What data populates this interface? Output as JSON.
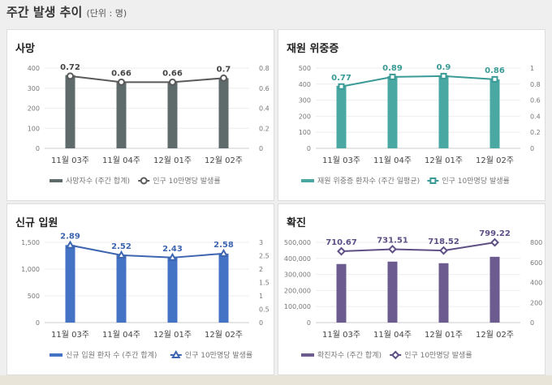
{
  "header": {
    "title": "주간 발생 추이",
    "unit": "(단위 : 명)"
  },
  "chart_data": [
    {
      "type": "bar+line",
      "title": "사망",
      "categories": [
        "11월 03주",
        "11월 04주",
        "12월 01주",
        "12월 02주"
      ],
      "series": [
        {
          "name": "사망자수 (주간 합계)",
          "type": "bar",
          "axis": "left",
          "values": [
            365,
            330,
            330,
            350
          ],
          "color": "#5f6a6a"
        },
        {
          "name": "인구 10만명당 발생률",
          "type": "line",
          "axis": "right",
          "values": [
            0.72,
            0.66,
            0.66,
            0.7
          ],
          "color": "#5a5a5a",
          "marker": "circle"
        }
      ],
      "ylim_left": [
        0,
        400
      ],
      "yticks_left": [
        "0",
        "100",
        "200",
        "300",
        "400"
      ],
      "ylim_right": [
        0,
        0.8
      ],
      "yticks_right": [
        "0",
        "0.2",
        "0.4",
        "0.6",
        "0.8"
      ],
      "grid": true,
      "legend": "bottom"
    },
    {
      "type": "bar+line",
      "title": "재원 위중증",
      "categories": [
        "11월 03주",
        "11월 04주",
        "12월 01주",
        "12월 02주"
      ],
      "series": [
        {
          "name": "재원 위중증 환자수 (주간 일평균)",
          "type": "bar",
          "axis": "left",
          "values": [
            390,
            450,
            455,
            430
          ],
          "color": "#4aa8a3"
        },
        {
          "name": "인구 10만명당 발생률",
          "type": "line",
          "axis": "right",
          "values": [
            0.77,
            0.89,
            0.9,
            0.86
          ],
          "color": "#3a9b96",
          "marker": "square"
        }
      ],
      "ylim_left": [
        0,
        500
      ],
      "yticks_left": [
        "0",
        "100",
        "200",
        "300",
        "400",
        "500"
      ],
      "ylim_right": [
        0,
        1
      ],
      "yticks_right": [
        "0",
        "0.2",
        "0.4",
        "0.6",
        "0.8",
        "1"
      ],
      "grid": true,
      "legend": "bottom"
    },
    {
      "type": "bar+line",
      "title": "신규 입원",
      "categories": [
        "11월 03주",
        "11월 04주",
        "12월 01주",
        "12월 02주"
      ],
      "series": [
        {
          "name": "신규 입원 환자 수 (주간 합계)",
          "type": "bar",
          "axis": "left",
          "values": [
            1450,
            1260,
            1215,
            1290
          ],
          "color": "#4472c4"
        },
        {
          "name": "인구 10만명당 발생률",
          "type": "line",
          "axis": "right",
          "values": [
            2.89,
            2.52,
            2.43,
            2.58
          ],
          "color": "#3d65b0",
          "marker": "triangle"
        }
      ],
      "ylim_left": [
        0,
        1500
      ],
      "yticks_left": [
        "0",
        "500",
        "1,000",
        "1,500"
      ],
      "ylim_right": [
        0,
        3
      ],
      "yticks_right": [
        "0",
        "0.5",
        "1",
        "1.5",
        "2",
        "2.5",
        "3"
      ],
      "grid": true,
      "legend": "bottom"
    },
    {
      "type": "bar+line",
      "title": "확진",
      "categories": [
        "11월 03주",
        "11월 04주",
        "12월 01주",
        "12월 02주"
      ],
      "series": [
        {
          "name": "확진자수 (주간 합계)",
          "type": "bar",
          "axis": "left",
          "values": [
            365000,
            380000,
            370000,
            410000
          ],
          "color": "#6b5b8e"
        },
        {
          "name": "인구 10만명당 발생률",
          "type": "line",
          "axis": "right",
          "values": [
            710.67,
            731.51,
            718.52,
            799.22
          ],
          "color": "#5e4f85",
          "marker": "diamond"
        }
      ],
      "ylim_left": [
        0,
        500000
      ],
      "yticks_left": [
        "0",
        "100,000",
        "200,000",
        "300,000",
        "400,000",
        "500,000"
      ],
      "ylim_right": [
        0,
        800
      ],
      "yticks_right": [
        "0",
        "200",
        "400",
        "600",
        "800"
      ],
      "grid": true,
      "legend": "bottom"
    }
  ]
}
